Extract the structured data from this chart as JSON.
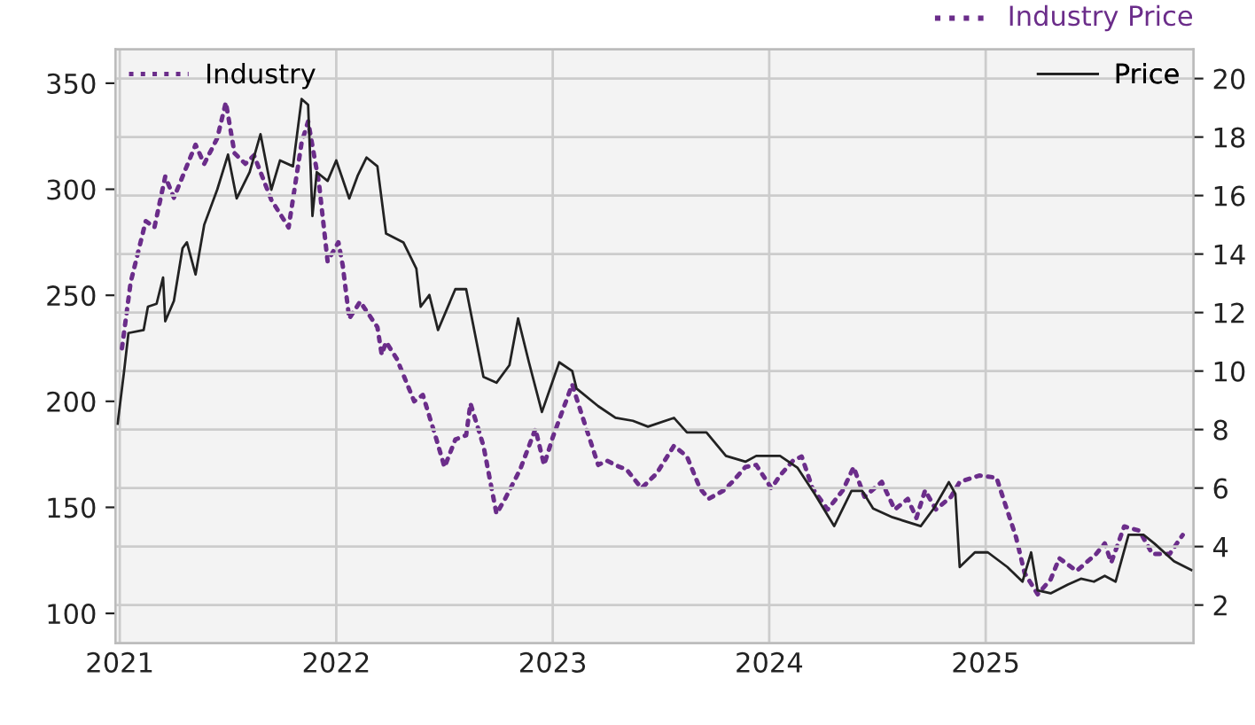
{
  "chart_data": {
    "type": "line",
    "annotations": [
      "Industry Price"
    ],
    "legend": "top",
    "grid": true,
    "line_style": "solid",
    "marker": "none",
    "xlim": [
      2020.98,
      2025.96
    ],
    "xticks": [
      2021,
      2022,
      2023,
      2024,
      2025
    ],
    "ylim": [
      86,
      366
    ],
    "yticks": [
      100,
      150,
      200,
      250,
      300,
      350
    ],
    "y2lim": [
      0.7,
      21
    ],
    "y2ticks": [
      2,
      4,
      6,
      8,
      10,
      12,
      14,
      16,
      18,
      20
    ],
    "series": [
      {
        "name": "Industry",
        "color": "#6b2d8a",
        "line_style": "dotted",
        "x": [
          2021.01,
          2021.05,
          2021.12,
          2021.16,
          2021.21,
          2021.25,
          2021.35,
          2021.39,
          2021.45,
          2021.49,
          2021.53,
          2021.58,
          2021.62,
          2021.7,
          2021.78,
          2021.84,
          2021.87,
          2021.92,
          2021.96,
          2022.01,
          2022.03,
          2022.06,
          2022.11,
          2022.19,
          2022.21,
          2022.23,
          2022.28,
          2022.36,
          2022.4,
          2022.46,
          2022.5,
          2022.55,
          2022.6,
          2022.62,
          2022.68,
          2022.74,
          2022.78,
          2022.85,
          2022.92,
          2022.96,
          2023.0,
          2023.09,
          2023.13,
          2023.21,
          2023.25,
          2023.31,
          2023.34,
          2023.41,
          2023.48,
          2023.56,
          2023.62,
          2023.68,
          2023.72,
          2023.79,
          2023.83,
          2023.89,
          2023.94,
          2024.01,
          2024.05,
          2024.11,
          2024.15,
          2024.2,
          2024.27,
          2024.34,
          2024.39,
          2024.44,
          2024.52,
          2024.58,
          2024.64,
          2024.68,
          2024.72,
          2024.77,
          2024.84,
          2024.88,
          2024.97,
          2025.05,
          2025.14,
          2025.18,
          2025.24,
          2025.3,
          2025.34,
          2025.42,
          2025.51,
          2025.55,
          2025.58,
          2025.64,
          2025.71,
          2025.77,
          2025.85,
          2025.91
        ],
        "values": [
          225,
          256,
          285,
          282,
          306,
          296,
          321,
          312,
          324,
          341,
          317,
          312,
          316,
          295,
          282,
          322,
          332,
          303,
          266,
          275,
          264,
          239,
          247,
          235,
          222,
          228,
          220,
          200,
          203,
          183,
          169,
          182,
          184,
          199,
          179,
          147,
          154,
          168,
          187,
          170,
          183,
          208,
          195,
          170,
          172,
          169,
          168,
          159,
          166,
          179,
          174,
          159,
          154,
          158,
          162,
          169,
          170,
          159,
          165,
          172,
          174,
          159,
          149,
          158,
          169,
          155,
          162,
          149,
          154,
          145,
          158,
          149,
          155,
          162,
          165,
          164,
          136,
          119,
          109,
          116,
          126,
          120,
          128,
          133,
          124,
          141,
          139,
          128,
          128,
          137
        ]
      },
      {
        "name": "Price",
        "color": "#222222",
        "axis": "y2",
        "x": [
          2020.99,
          2021.02,
          2021.04,
          2021.11,
          2021.13,
          2021.17,
          2021.2,
          2021.21,
          2021.25,
          2021.29,
          2021.31,
          2021.35,
          2021.39,
          2021.45,
          2021.5,
          2021.54,
          2021.6,
          2021.65,
          2021.7,
          2021.74,
          2021.8,
          2021.84,
          2021.87,
          2021.89,
          2021.91,
          2021.96,
          2022.0,
          2022.06,
          2022.1,
          2022.14,
          2022.19,
          2022.23,
          2022.31,
          2022.37,
          2022.39,
          2022.43,
          2022.47,
          2022.55,
          2022.6,
          2022.68,
          2022.74,
          2022.8,
          2022.84,
          2022.89,
          2022.95,
          2023.03,
          2023.09,
          2023.11,
          2023.21,
          2023.29,
          2023.37,
          2023.44,
          2023.56,
          2023.62,
          2023.71,
          2023.8,
          2023.89,
          2023.94,
          2024.05,
          2024.13,
          2024.21,
          2024.3,
          2024.38,
          2024.43,
          2024.48,
          2024.57,
          2024.7,
          2024.76,
          2024.83,
          2024.86,
          2024.88,
          2024.95,
          2025.01,
          2025.1,
          2025.17,
          2025.21,
          2025.24,
          2025.3,
          2025.38,
          2025.44,
          2025.5,
          2025.55,
          2025.6,
          2025.66,
          2025.73,
          2025.78,
          2025.87,
          2025.95
        ],
        "values": [
          8.2,
          10.0,
          11.3,
          11.4,
          12.2,
          12.3,
          13.2,
          11.7,
          12.4,
          14.2,
          14.4,
          13.3,
          15.0,
          16.2,
          17.4,
          15.9,
          16.8,
          18.1,
          16.2,
          17.2,
          17.0,
          19.3,
          19.1,
          15.3,
          16.8,
          16.5,
          17.2,
          15.9,
          16.7,
          17.3,
          17.0,
          14.7,
          14.4,
          13.5,
          12.2,
          12.6,
          11.4,
          12.8,
          12.8,
          9.8,
          9.6,
          10.2,
          11.8,
          10.3,
          8.6,
          10.3,
          10.0,
          9.4,
          8.8,
          8.4,
          8.3,
          8.1,
          8.4,
          7.9,
          7.9,
          7.1,
          6.9,
          7.1,
          7.1,
          6.7,
          5.8,
          4.7,
          5.9,
          5.9,
          5.3,
          5.0,
          4.7,
          5.3,
          6.2,
          5.8,
          3.3,
          3.8,
          3.8,
          3.3,
          2.8,
          3.8,
          2.5,
          2.4,
          2.7,
          2.9,
          2.8,
          3.0,
          2.8,
          4.4,
          4.4,
          4.1,
          3.5,
          3.2
        ]
      }
    ]
  }
}
